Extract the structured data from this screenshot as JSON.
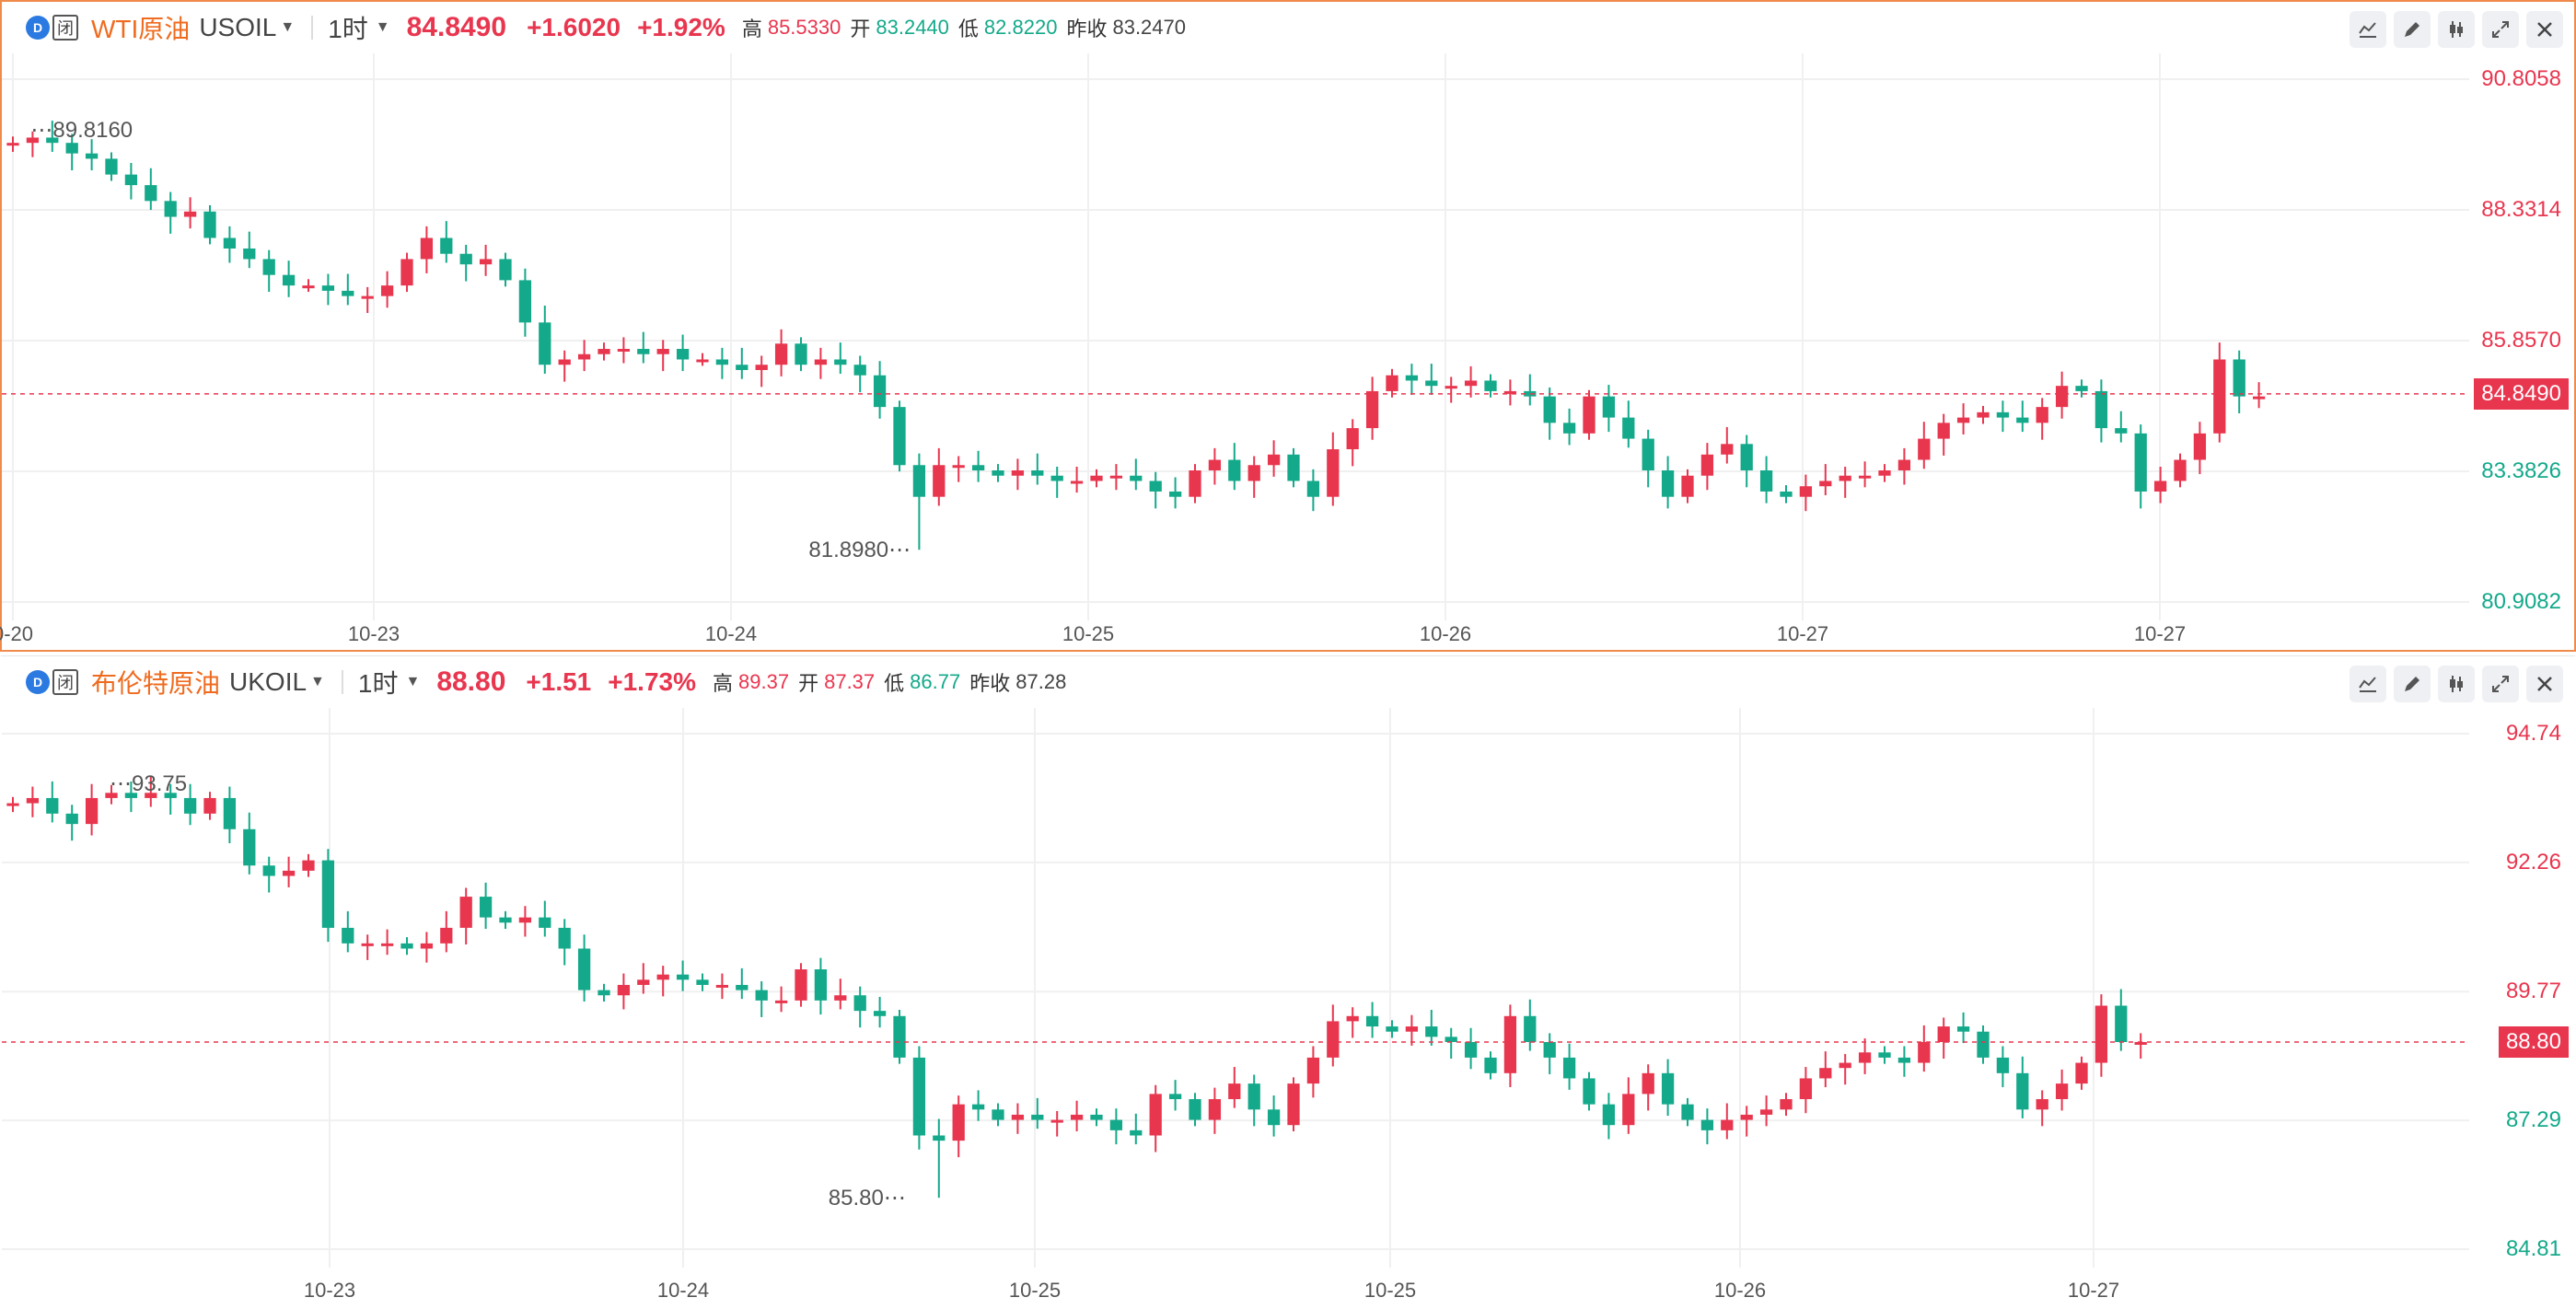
{
  "panels": [
    {
      "id": "wti",
      "name": "WTI原油",
      "code": "USOIL",
      "interval": "1时",
      "last": "84.8490",
      "change": "+1.6020",
      "change_pct": "+1.92%",
      "high_label": "高",
      "high": "85.5330",
      "open_label": "开",
      "open": "83.2440",
      "low_label": "低",
      "low": "82.8220",
      "prev_label": "昨收",
      "prev": "83.2470",
      "badge_status": "闭",
      "y_axis": [
        "90.8058",
        "88.3314",
        "85.8570",
        "83.3826",
        "80.9082"
      ],
      "time_axis": [
        "0-20",
        "10-23",
        "10-24",
        "10-25",
        "10-26",
        "10-27",
        "10-27"
      ],
      "max_label": "89.8160",
      "min_label": "81.8980"
    },
    {
      "id": "brent",
      "name": "布伦特原油",
      "code": "UKOIL",
      "interval": "1时",
      "last": "88.80",
      "change": "+1.51",
      "change_pct": "+1.73%",
      "high_label": "高",
      "high": "89.37",
      "open_label": "开",
      "open": "87.37",
      "low_label": "低",
      "low": "86.77",
      "prev_label": "昨收",
      "prev": "87.28",
      "badge_status": "闭",
      "y_axis": [
        "94.74",
        "92.26",
        "89.77",
        "87.29",
        "84.81"
      ],
      "time_axis": [
        "10-23",
        "10-24",
        "10-25",
        "10-25",
        "10-26",
        "10-27"
      ],
      "max_label": "93.75",
      "min_label": "85.80"
    }
  ],
  "colors": {
    "up": "#e8364f",
    "down": "#14a98a",
    "accent": "#ef6b1f",
    "frame": "#f08a4b"
  },
  "icons": [
    "indicator-icon",
    "draw-icon",
    "candle-type-icon",
    "expand-icon",
    "close-icon"
  ],
  "chart_data": [
    {
      "type": "candlestick",
      "title": "WTI原油 USOIL 1时",
      "ylim": [
        80.9082,
        90.8058
      ],
      "x_ticks": [
        "0-20",
        "10-23",
        "10-24",
        "10-25",
        "10-26",
        "10-27",
        "10-27"
      ],
      "closes": [
        89.6,
        89.7,
        89.6,
        89.4,
        89.3,
        89.0,
        88.8,
        88.5,
        88.2,
        88.3,
        87.8,
        87.6,
        87.4,
        87.1,
        86.9,
        86.9,
        86.8,
        86.7,
        86.7,
        86.9,
        87.4,
        87.8,
        87.5,
        87.3,
        87.4,
        87.0,
        86.2,
        85.4,
        85.5,
        85.6,
        85.7,
        85.7,
        85.6,
        85.7,
        85.5,
        85.5,
        85.4,
        85.3,
        85.4,
        85.8,
        85.4,
        85.5,
        85.4,
        85.2,
        84.6,
        83.5,
        82.9,
        83.5,
        83.5,
        83.4,
        83.3,
        83.4,
        83.3,
        83.2,
        83.2,
        83.3,
        83.3,
        83.2,
        83.0,
        82.9,
        83.4,
        83.6,
        83.2,
        83.5,
        83.7,
        83.2,
        82.9,
        83.8,
        84.2,
        84.9,
        85.2,
        85.1,
        85.0,
        85.0,
        85.1,
        84.9,
        84.9,
        84.8,
        84.3,
        84.1,
        84.8,
        84.4,
        84.0,
        83.4,
        82.9,
        83.3,
        83.7,
        83.9,
        83.4,
        83.0,
        82.9,
        83.1,
        83.2,
        83.3,
        83.3,
        83.4,
        83.6,
        84.0,
        84.3,
        84.4,
        84.5,
        84.4,
        84.3,
        84.6,
        85.0,
        84.9,
        84.2,
        84.1,
        83.0,
        83.2,
        83.6,
        84.1,
        85.5,
        84.8,
        84.8
      ],
      "high": 89.816,
      "low": 81.898,
      "last": 84.849
    },
    {
      "type": "candlestick",
      "title": "布伦特原油 UKOIL 1时",
      "ylim": [
        84.81,
        94.74
      ],
      "x_ticks": [
        "10-23",
        "10-24",
        "10-25",
        "10-25",
        "10-26",
        "10-27"
      ],
      "closes": [
        93.4,
        93.5,
        93.2,
        93.0,
        93.5,
        93.6,
        93.5,
        93.6,
        93.5,
        93.2,
        93.5,
        92.9,
        92.2,
        92.0,
        92.1,
        92.3,
        91.0,
        90.7,
        90.7,
        90.7,
        90.6,
        90.7,
        91.0,
        91.6,
        91.2,
        91.1,
        91.2,
        91.0,
        90.6,
        89.8,
        89.7,
        89.9,
        90.0,
        90.1,
        90.0,
        89.9,
        89.9,
        89.8,
        89.6,
        89.6,
        90.2,
        89.6,
        89.7,
        89.4,
        89.3,
        88.5,
        87.0,
        86.9,
        87.6,
        87.5,
        87.3,
        87.4,
        87.3,
        87.3,
        87.4,
        87.3,
        87.1,
        87.0,
        87.8,
        87.7,
        87.3,
        87.7,
        88.0,
        87.5,
        87.2,
        88.0,
        88.5,
        89.2,
        89.3,
        89.1,
        89.0,
        89.1,
        88.9,
        88.8,
        88.5,
        88.2,
        89.3,
        88.8,
        88.5,
        88.1,
        87.6,
        87.2,
        87.8,
        88.2,
        87.6,
        87.3,
        87.1,
        87.3,
        87.4,
        87.5,
        87.7,
        88.1,
        88.3,
        88.4,
        88.6,
        88.5,
        88.4,
        88.8,
        89.1,
        89.0,
        88.5,
        88.2,
        87.5,
        87.7,
        88.0,
        88.4,
        89.5,
        88.8,
        88.8
      ],
      "high": 93.75,
      "low": 85.8,
      "last": 88.8
    }
  ]
}
